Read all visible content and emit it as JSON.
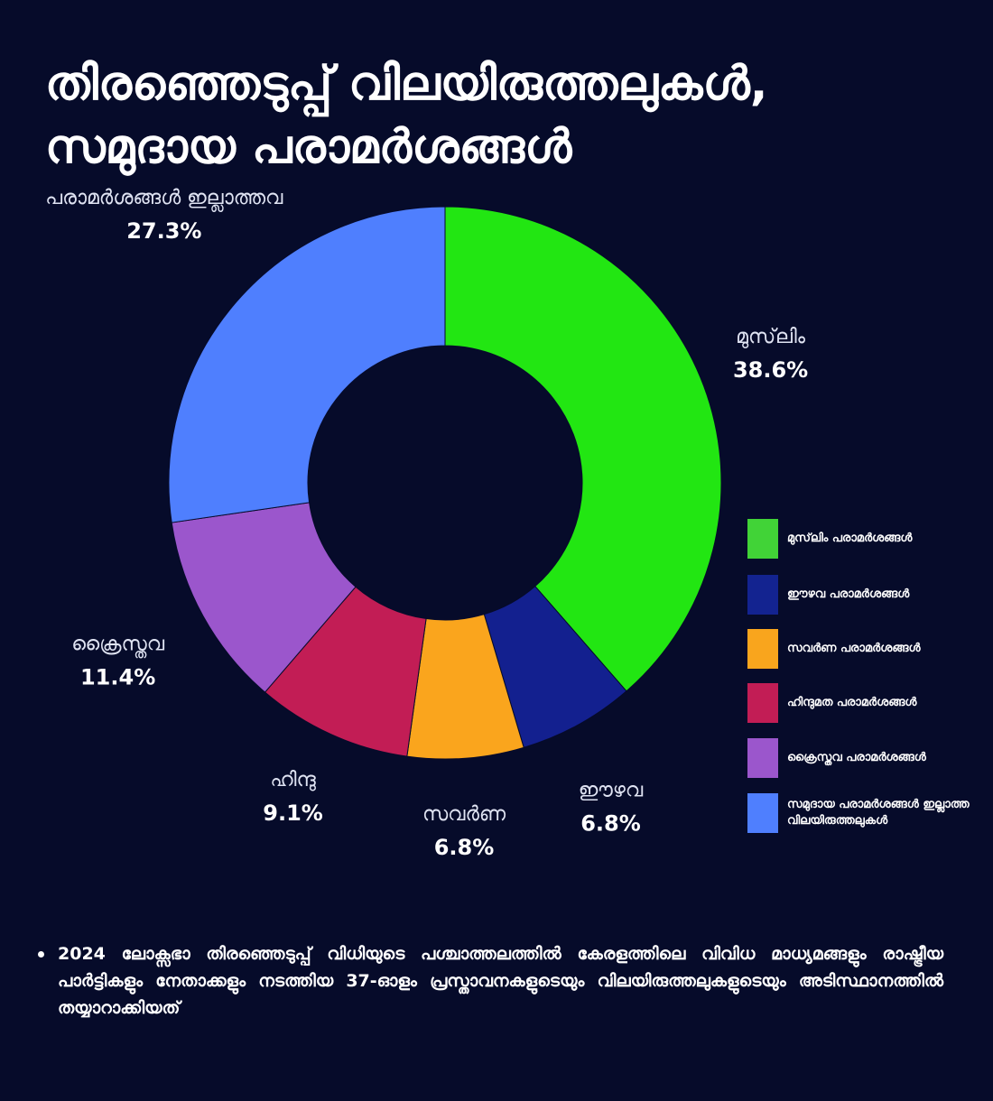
{
  "title": {
    "line1": "തിരഞ്ഞെടുപ്പ് വിലയിരുത്തലുകൾ,",
    "line2": "സമുദായ പരാമർശങ്ങൾ"
  },
  "chart_data": {
    "type": "pie",
    "donut": true,
    "start_angle_deg": 0,
    "direction": "clockwise",
    "series": [
      {
        "label": "മുസ്‌ലിം",
        "percent_label": "38.6%",
        "value": 38.6,
        "color": "#22e612",
        "legend": "മുസ്‌ലിം പരാമർശങ്ങൾ",
        "legend_color": "#41d337"
      },
      {
        "label": "ഈഴവ",
        "percent_label": "6.8%",
        "value": 6.8,
        "color": "#13208f",
        "legend": "ഈഴവ പരാമർശങ്ങൾ",
        "legend_color": "#132390"
      },
      {
        "label": "സവർണ",
        "percent_label": "6.8%",
        "value": 6.8,
        "color": "#faa51d",
        "legend": " സവർണ പരാമർശങ്ങൾ",
        "legend_color": "#f9a51d"
      },
      {
        "label": "ഹിന്ദു",
        "percent_label": "9.1%",
        "value": 9.1,
        "color": "#c21d55",
        "legend": "ഹിന്ദുമത പരാമർശങ്ങൾ",
        "legend_color": "#c21d55"
      },
      {
        "label": "ക്രൈസ്തവ",
        "percent_label": "11.4%",
        "value": 11.4,
        "color": "#9b56cc",
        "legend": "ക്രൈസ്തവ പരാമർശങ്ങൾ",
        "legend_color": "#9b56cc"
      },
      {
        "label": "പരാമർശങ്ങൾ ഇല്ലാത്തവ",
        "percent_label": "27.3%",
        "value": 27.3,
        "color": "#4f7ffe",
        "legend": "സമുദായ പരാമർശങ്ങൾ ഇല്ലാത്ത വിലയിരുത്തലുകൾ",
        "legend_color": "#4f7ffe"
      }
    ],
    "legend_position": "right"
  },
  "note": "2024 ലോക്സഭാ  തിരഞ്ഞെടുപ്പ് വിധിയുടെ പശ്ചാത്തലത്തിൽ കേരളത്തിലെ വിവിധ മാധ്യമങ്ങളും രാഷ്ട്രീയ പാർട്ടികളും നേതാക്കളും നടത്തിയ 37-ഓളം പ്രസ്താവനകളുടെയും വിലയിരുത്തലുകളുടെയും അടിസ്ഥാനത്തിൽ തയ്യാറാക്കിയത്",
  "background_color": "#060b2a"
}
